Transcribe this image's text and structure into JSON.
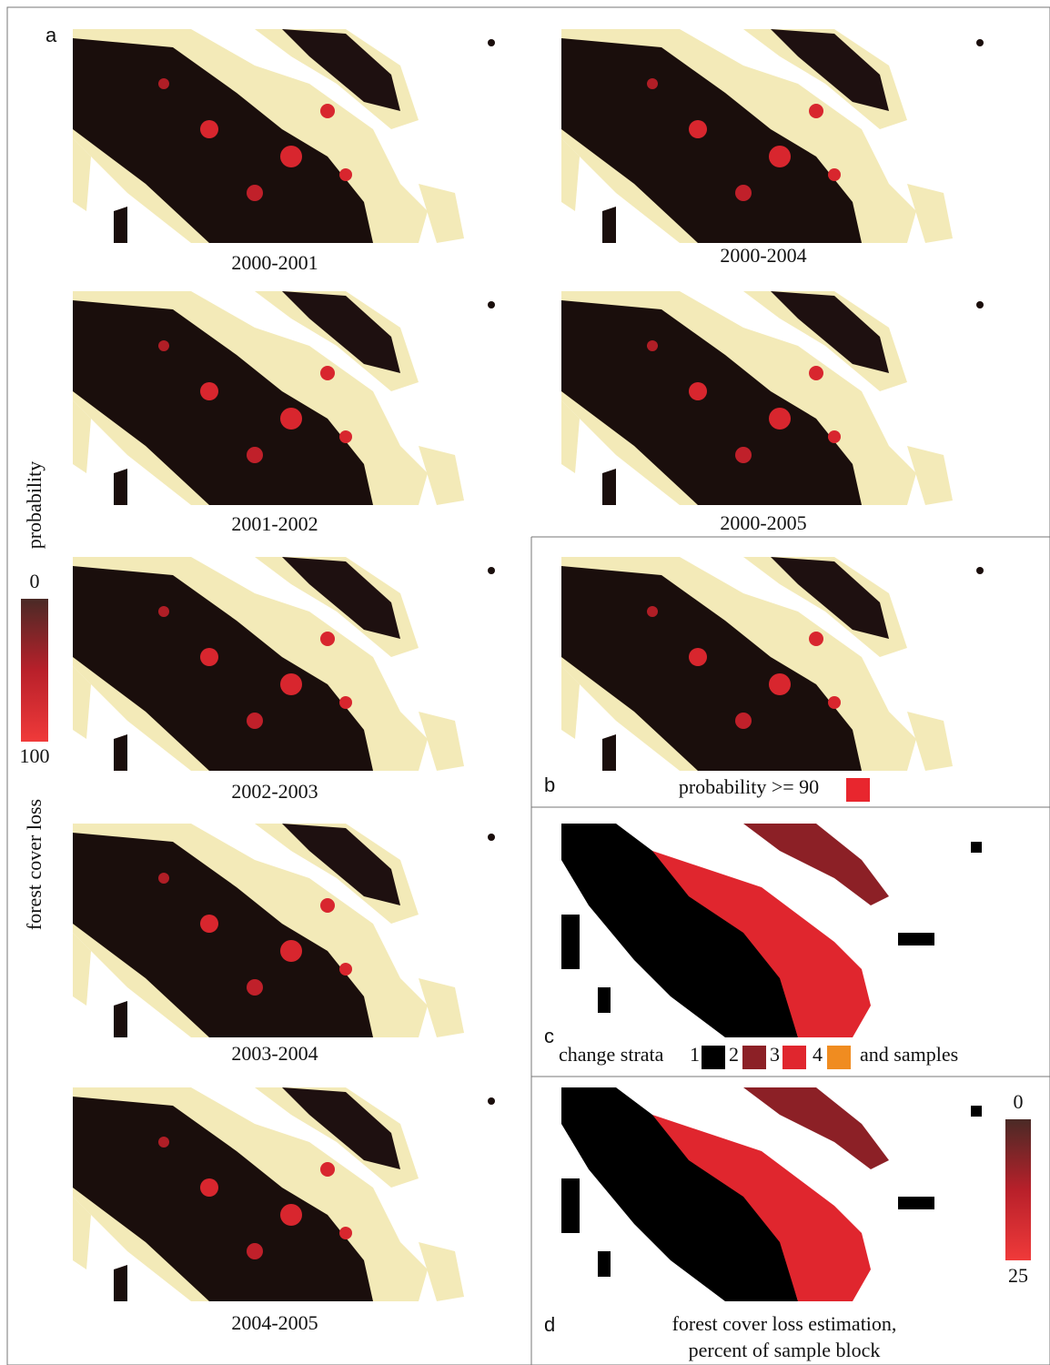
{
  "panel_a": {
    "label": "a",
    "maps": [
      {
        "caption": "2000-2001"
      },
      {
        "caption": "2001-2002"
      },
      {
        "caption": "2002-2003"
      },
      {
        "caption": "2003-2004"
      },
      {
        "caption": "2004-2005"
      },
      {
        "caption": "2000-2004"
      },
      {
        "caption": "2000-2005"
      }
    ],
    "legend": {
      "title_top": "probability",
      "title_bottom": "forest cover loss",
      "min_label": "0",
      "max_label": "100"
    }
  },
  "panel_b": {
    "label": "b",
    "caption": "probability >= 90"
  },
  "panel_c": {
    "label": "c",
    "legend": {
      "prefix": "change strata",
      "strata": [
        "1",
        "2",
        "3",
        "4"
      ],
      "suffix": "and samples"
    }
  },
  "panel_d": {
    "label": "d",
    "caption_lines": [
      "forest cover loss estimation,",
      "percent of sample block"
    ],
    "legend": {
      "min_label": "0",
      "max_label": "25"
    }
  }
}
